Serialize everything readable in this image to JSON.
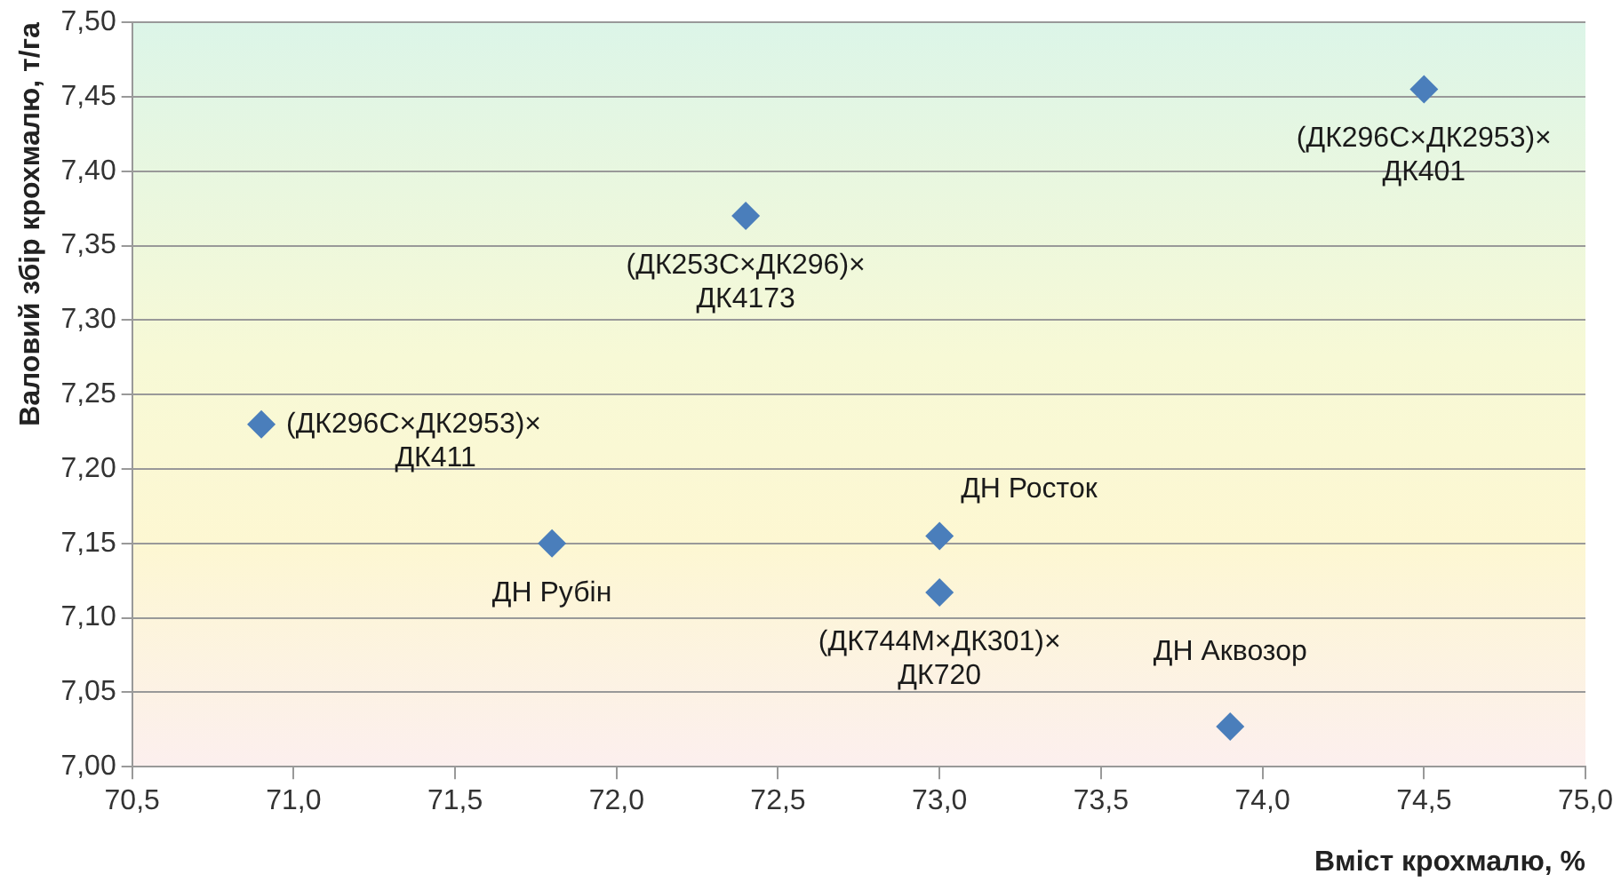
{
  "chart_data": {
    "type": "scatter",
    "xlabel": "Вміст крохмалю, %",
    "ylabel": "Валовий збір крохмалю, т/га",
    "series": [
      {
        "color": "#4a7ebb",
        "x": [
          70.9,
          71.8,
          72.4,
          73.0,
          73.0,
          73.9,
          74.5
        ],
        "values": [
          7.23,
          7.15,
          7.37,
          7.155,
          7.117,
          7.027,
          7.455
        ]
      }
    ],
    "annotations": [
      {
        "text": "(ДК296С×ДК2953)×\nДК411",
        "x": 70.9,
        "y": 7.23
      },
      {
        "text": "ДН Рубін",
        "x": 71.8,
        "y": 7.15
      },
      {
        "text": "(ДК253С×ДК296)×\nДК4173",
        "x": 72.4,
        "y": 7.37
      },
      {
        "text": "ДН Росток",
        "x": 73.0,
        "y": 7.155
      },
      {
        "text": "(ДК744М×ДК301)×\nДК720",
        "x": 73.0,
        "y": 7.117
      },
      {
        "text": "ДН Аквозор",
        "x": 73.9,
        "y": 7.027
      },
      {
        "text": "(ДК296С×ДК2953)×\nДК401",
        "x": 74.5,
        "y": 7.455
      }
    ],
    "xlim": [
      70.5,
      75.0
    ],
    "xticks": [
      {
        "value": 70.5,
        "label": "70,5"
      },
      {
        "value": 71,
        "label": "71,0"
      },
      {
        "value": 71.5,
        "label": "71,5"
      },
      {
        "value": 72,
        "label": "72,0"
      },
      {
        "value": 72.5,
        "label": "72,5"
      },
      {
        "value": 73,
        "label": "73,0"
      },
      {
        "value": 73.5,
        "label": "73,5"
      },
      {
        "value": 74,
        "label": "74,0"
      },
      {
        "value": 74.5,
        "label": "74,5"
      },
      {
        "value": 75,
        "label": "75,0"
      }
    ],
    "ylim": [
      7.0,
      7.5
    ],
    "yticks": [
      {
        "value": 7,
        "label": "7,00"
      },
      {
        "value": 7.05,
        "label": "7,05"
      },
      {
        "value": 7.1,
        "label": "7,10"
      },
      {
        "value": 7.15,
        "label": "7,15"
      },
      {
        "value": 7.2,
        "label": "7,20"
      },
      {
        "value": 7.25,
        "label": "7,25"
      },
      {
        "value": 7.3,
        "label": "7,30"
      },
      {
        "value": 7.35,
        "label": "7,35"
      },
      {
        "value": 7.4,
        "label": "7,40"
      },
      {
        "value": 7.45,
        "label": "7,45"
      },
      {
        "value": 7.5,
        "label": "7,50"
      }
    ],
    "grid": "y",
    "legend": false,
    "marker": "diamond"
  }
}
